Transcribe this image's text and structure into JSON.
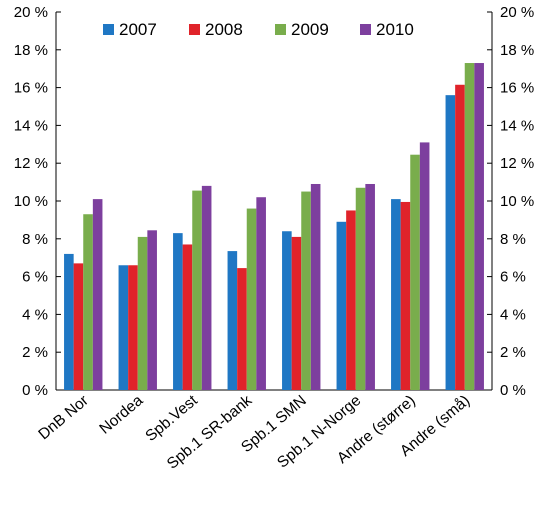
{
  "chart_data": {
    "type": "bar",
    "categories": [
      "DnB Nor",
      "Nordea",
      "Spb.Vest",
      "Spb.1 SR-bank",
      "Spb.1 SMN",
      "Spb.1 N-Norge",
      "Andre (større)",
      "Andre (små)"
    ],
    "series": [
      {
        "name": "2007",
        "color": "#1f77c4",
        "values": [
          7.2,
          6.6,
          8.3,
          7.35,
          8.4,
          8.9,
          10.1,
          15.6
        ]
      },
      {
        "name": "2008",
        "color": "#e0232a",
        "values": [
          6.7,
          6.6,
          7.7,
          6.45,
          8.1,
          9.5,
          9.95,
          16.15
        ]
      },
      {
        "name": "2009",
        "color": "#79ad4c",
        "values": [
          9.3,
          8.1,
          10.55,
          9.6,
          10.5,
          10.7,
          12.45,
          17.3
        ]
      },
      {
        "name": "2010",
        "color": "#7d3f9e",
        "values": [
          10.1,
          8.45,
          10.8,
          10.2,
          10.9,
          10.9,
          13.1,
          17.3
        ]
      }
    ],
    "yticks": [
      "0 %",
      "2 %",
      "4 %",
      "6 %",
      "8 %",
      "10 %",
      "12 %",
      "14 %",
      "16 %",
      "18 %",
      "20 %"
    ],
    "ylim": [
      0,
      20
    ],
    "legend_position": "top-left",
    "grid": false
  }
}
